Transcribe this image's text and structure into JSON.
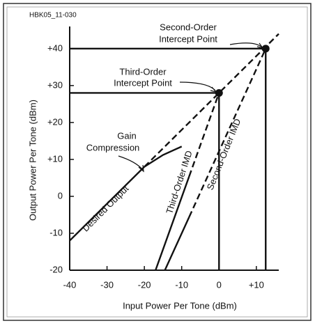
{
  "chart_data": {
    "type": "line",
    "code": "HBK05_11-030",
    "xlabel": "Input Power Per Tone (dBm)",
    "ylabel": "Output Power Per Tone (dBm)",
    "xlim": [
      -40,
      16
    ],
    "ylim": [
      -20,
      46
    ],
    "xticks": [
      -40,
      -30,
      -20,
      -10,
      0,
      {
        "value": 10,
        "label": "+10"
      }
    ],
    "yticks": [
      -20,
      -10,
      0,
      {
        "value": 10,
        "label": "+10"
      },
      {
        "value": 20,
        "label": "+20"
      },
      {
        "value": 30,
        "label": "+30"
      },
      {
        "value": 40,
        "label": "+40"
      }
    ],
    "color": "#111111",
    "series": [
      {
        "x": [
          -40,
          -20
        ],
        "values": [
          -12,
          8
        ],
        "style": "solid"
      },
      {
        "x": [
          -20,
          -15,
          -10
        ],
        "values": [
          8,
          11.2,
          13.5
        ],
        "style": "solid"
      },
      {
        "x": [
          -20,
          16
        ],
        "values": [
          8,
          44
        ],
        "style": "dashed"
      },
      {
        "x": [
          -17,
          -8
        ],
        "values": [
          -20,
          5.4
        ],
        "style": "solid"
      },
      {
        "x": [
          -8,
          0
        ],
        "values": [
          5.4,
          28
        ],
        "style": "dashed"
      },
      {
        "x": [
          -14.5,
          -8
        ],
        "values": [
          -20,
          -5.6
        ],
        "style": "solid"
      },
      {
        "x": [
          -8,
          12.5
        ],
        "values": [
          -5.6,
          40
        ],
        "style": "dashed"
      },
      {
        "x": [
          -40,
          12.5
        ],
        "values": [
          40,
          40
        ],
        "style": "solid"
      },
      {
        "x": [
          -40,
          0
        ],
        "values": [
          28,
          28
        ],
        "style": "solid"
      },
      {
        "x": [
          0,
          0
        ],
        "values": [
          -20,
          28
        ],
        "style": "solid"
      },
      {
        "x": [
          12.5,
          12.5
        ],
        "values": [
          -20,
          40
        ],
        "style": "solid"
      }
    ],
    "points": [
      {
        "x": 0,
        "y": 28
      },
      {
        "x": 12.5,
        "y": 40
      }
    ],
    "annotations": {
      "second_intercept": [
        "Second-Order",
        "Intercept Point"
      ],
      "third_intercept": [
        "Third-Order",
        "Intercept Point"
      ],
      "gain_compression": [
        "Gain",
        "Compression"
      ],
      "desired_output": "Desired Output",
      "third_imd": "Third-Order IMD",
      "second_imd": "Second-Order IMD"
    }
  }
}
